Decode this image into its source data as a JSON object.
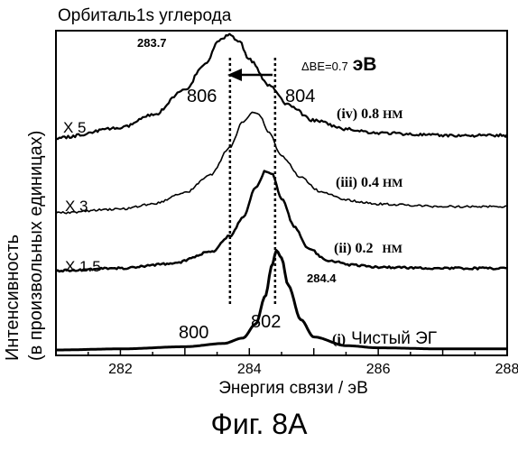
{
  "title": "Орбиталь1s углерода",
  "caption": "Фиг. 8А",
  "chart_data": {
    "type": "line",
    "title": "Орбиталь1s углерода",
    "xlabel": "Энергия связи / эВ",
    "ylabel_line1": "Интенсивность",
    "ylabel_line2": "(в произвольных единицах)",
    "xlim": [
      281,
      288
    ],
    "xticks": [
      282,
      284,
      286,
      288
    ],
    "y_scale": "arbitrary units, offset stacked curves",
    "grid": false,
    "series": [
      {
        "label": "(i) Чистый ЭГ",
        "multiplier": "",
        "peak_x": 284.4,
        "x": [
          281.0,
          282.0,
          283.0,
          283.6,
          283.9,
          284.1,
          284.25,
          284.35,
          284.42,
          284.5,
          284.6,
          284.8,
          285.0,
          285.5,
          286.0,
          287.0,
          288.0
        ],
        "y": [
          0.0,
          0.01,
          0.03,
          0.06,
          0.11,
          0.24,
          0.5,
          0.78,
          0.92,
          0.85,
          0.6,
          0.28,
          0.12,
          0.04,
          0.02,
          0.01,
          0.01
        ]
      },
      {
        "label": "(ii) 0.2",
        "unit": "НМ",
        "multiplier": "X 1.5",
        "peak_x": 284.3,
        "x": [
          281.0,
          282.0,
          282.8,
          283.4,
          283.7,
          283.9,
          284.1,
          284.25,
          284.35,
          284.5,
          284.7,
          284.9,
          285.2,
          285.6,
          286.0,
          287.0,
          288.0
        ],
        "y": [
          0.0,
          0.02,
          0.06,
          0.16,
          0.3,
          0.46,
          0.72,
          0.86,
          0.84,
          0.62,
          0.38,
          0.2,
          0.09,
          0.05,
          0.03,
          0.02,
          0.02
        ]
      },
      {
        "label": "(iii) 0.4",
        "unit": "НМ",
        "multiplier": "X 3",
        "peak_x": 284.1,
        "x": [
          281.0,
          282.0,
          282.5,
          283.0,
          283.4,
          283.7,
          283.9,
          284.05,
          284.15,
          284.3,
          284.5,
          284.8,
          285.1,
          285.5,
          286.0,
          287.0,
          288.0
        ],
        "y": [
          0.0,
          0.03,
          0.07,
          0.16,
          0.3,
          0.52,
          0.72,
          0.8,
          0.78,
          0.64,
          0.45,
          0.28,
          0.17,
          0.1,
          0.07,
          0.05,
          0.05
        ]
      },
      {
        "label": "(iv) 0.8",
        "unit": "НМ",
        "multiplier": "X 5",
        "peak_x": 283.7,
        "x": [
          281.0,
          282.0,
          282.5,
          283.0,
          283.3,
          283.55,
          283.7,
          283.85,
          284.0,
          284.3,
          284.6,
          285.0,
          285.5,
          286.0,
          287.0,
          288.0
        ],
        "y": [
          0.0,
          0.08,
          0.18,
          0.38,
          0.58,
          0.78,
          0.82,
          0.76,
          0.62,
          0.42,
          0.26,
          0.14,
          0.07,
          0.04,
          0.02,
          0.02
        ]
      }
    ],
    "annotations": {
      "peak_label_top": "283.7",
      "peak_label_bottom": "284.4",
      "delta_be": "ΔBE=0.7",
      "delta_unit": "эВ",
      "ref_806": "806",
      "ref_804": "804",
      "ref_800": "800",
      "ref_802": "802"
    },
    "dotted_lines_x": [
      283.7,
      284.4
    ]
  }
}
